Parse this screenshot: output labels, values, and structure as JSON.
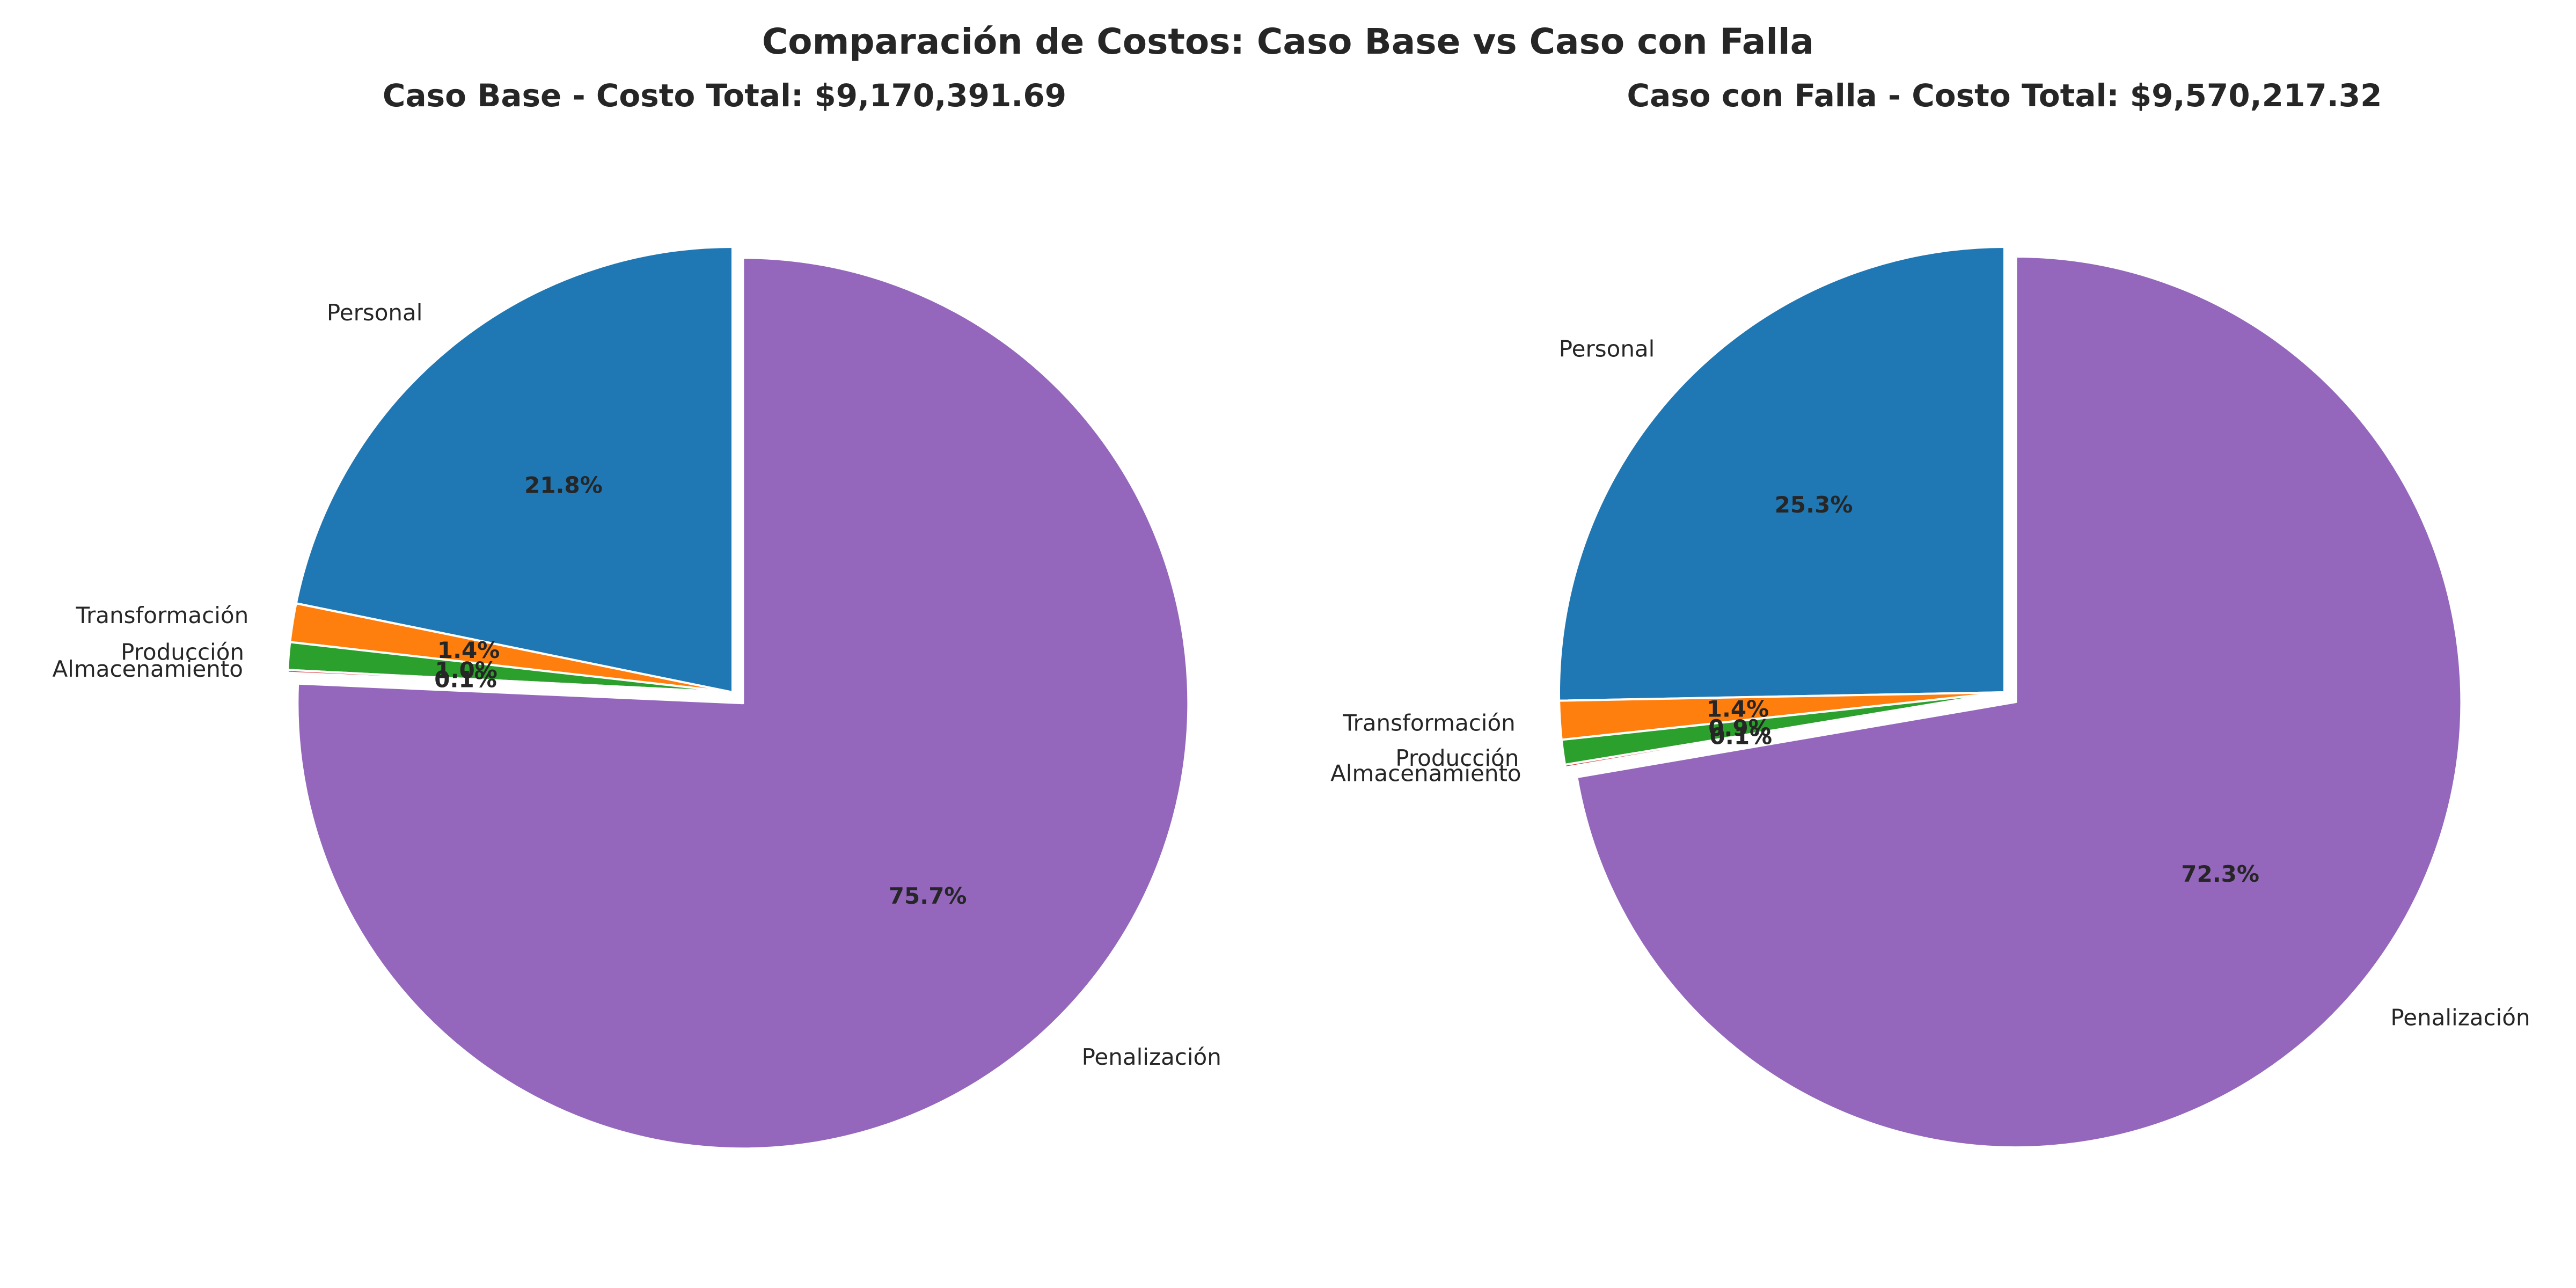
{
  "chart_data": {
    "title": "Comparación de Costos: Caso Base vs Caso con Falla",
    "charts": [
      {
        "type": "pie",
        "title": "Caso Base - Costo Total: $9,170,391.69",
        "start_angle_deg": 90,
        "direction": "counterclockwise",
        "exploded": "Penalización",
        "slices": [
          {
            "label": "Personal",
            "value": 21.8,
            "pct_text": "21.8%",
            "color": "#1f77b4"
          },
          {
            "label": "Transformación",
            "value": 1.4,
            "pct_text": "1.4%",
            "color": "#ff7f0e"
          },
          {
            "label": "Producción",
            "value": 1.0,
            "pct_text": "1.0%",
            "color": "#2ca02c"
          },
          {
            "label": "Almacenamiento",
            "value": 0.1,
            "pct_text": "0.1%",
            "color": "#d62728"
          },
          {
            "label": "Penalización",
            "value": 75.7,
            "pct_text": "75.7%",
            "color": "#9467bd"
          }
        ]
      },
      {
        "type": "pie",
        "title": "Caso con Falla - Costo Total: $9,570,217.32",
        "start_angle_deg": 90,
        "direction": "counterclockwise",
        "exploded": "Penalización",
        "slices": [
          {
            "label": "Personal",
            "value": 25.3,
            "pct_text": "25.3%",
            "color": "#1f77b4"
          },
          {
            "label": "Transformación",
            "value": 1.4,
            "pct_text": "1.4%",
            "color": "#ff7f0e"
          },
          {
            "label": "Producción",
            "value": 0.9,
            "pct_text": "0.9%",
            "color": "#2ca02c"
          },
          {
            "label": "Almacenamiento",
            "value": 0.1,
            "pct_text": "0.1%",
            "color": "#d62728"
          },
          {
            "label": "Penalización",
            "value": 72.3,
            "pct_text": "72.3%",
            "color": "#9467bd"
          }
        ]
      }
    ]
  }
}
